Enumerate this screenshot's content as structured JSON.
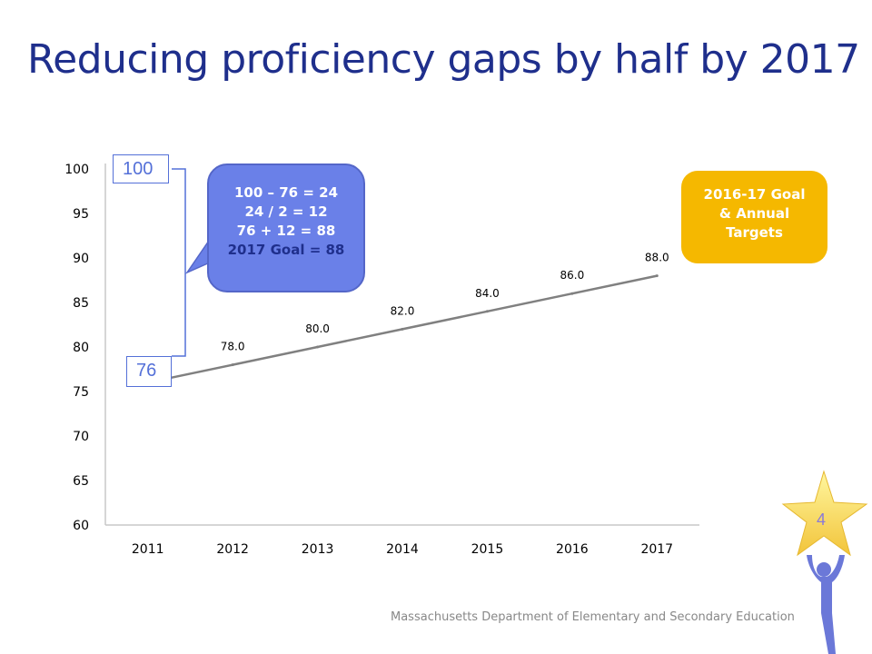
{
  "title": "Reducing proficiency gaps by half by 2017",
  "footer": "Massachusetts Department of Elementary and Secondary Education",
  "page_number": "4",
  "callout": {
    "line1": "100 – 76 = 24",
    "line2": "24 / 2 = 12",
    "line3": "76 + 12 = 88",
    "line4": "2017  Goal = 88"
  },
  "goal_box": {
    "line1": "2016-17 Goal",
    "line2": "& Annual",
    "line3": "Targets"
  },
  "bracket_top_label": "100",
  "bracket_bottom_label": "76",
  "colors": {
    "title": "#1f2f8c",
    "line": "#808080",
    "callout": "#6a80e8",
    "goal": "#f5b800"
  },
  "chart_data": {
    "type": "line",
    "x": [
      "2011",
      "2012",
      "2013",
      "2014",
      "2015",
      "2016",
      "2017"
    ],
    "series": [
      {
        "values": [
          76.0,
          78.0,
          80.0,
          82.0,
          84.0,
          86.0,
          88.0
        ],
        "data_labels": [
          "",
          "78.0",
          "80.0",
          "82.0",
          "84.0",
          "86.0",
          "88.0"
        ]
      }
    ],
    "ylim": [
      60,
      100
    ],
    "yticks": [
      "60",
      "65",
      "70",
      "75",
      "80",
      "85",
      "90",
      "95",
      "100"
    ],
    "grid": false
  }
}
